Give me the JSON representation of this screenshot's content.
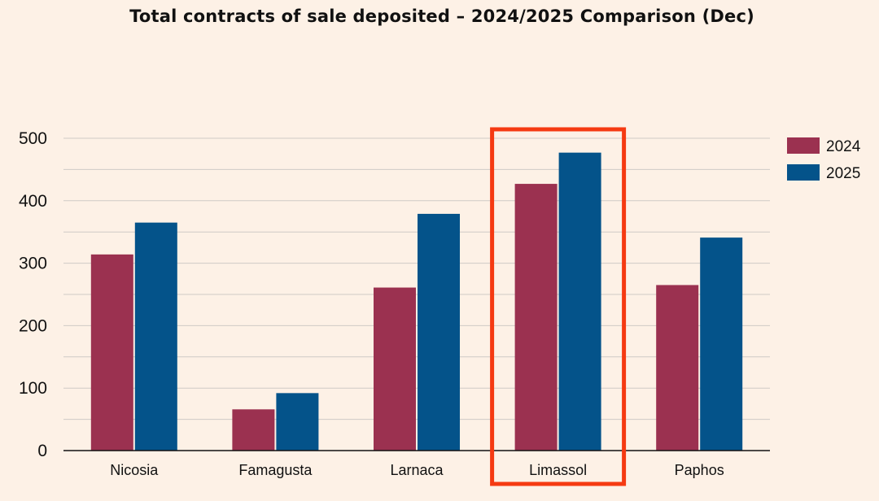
{
  "chart_data": {
    "type": "bar",
    "title": "Total contracts of sale deposited – 2024/2025 Comparison (Dec)",
    "categories": [
      "Nicosia",
      "Famagusta",
      "Larnaca",
      "Limassol",
      "Paphos"
    ],
    "series": [
      {
        "name": "2024",
        "color": "#9b3150",
        "values": [
          314,
          66,
          261,
          427,
          265
        ]
      },
      {
        "name": "2025",
        "color": "#04538a",
        "values": [
          365,
          92,
          379,
          477,
          341
        ]
      }
    ],
    "y_ticks": [
      0,
      100,
      200,
      300,
      400,
      500
    ],
    "ylim": [
      0,
      500
    ],
    "minor_gridlines": true,
    "xlabel": "",
    "ylabel": "",
    "legend_position": "top-right",
    "highlighted_category": "Limassol",
    "highlight_color": "#f53a12",
    "background_color": "#fdf1e6",
    "gridline_color": "#cfcac6"
  }
}
